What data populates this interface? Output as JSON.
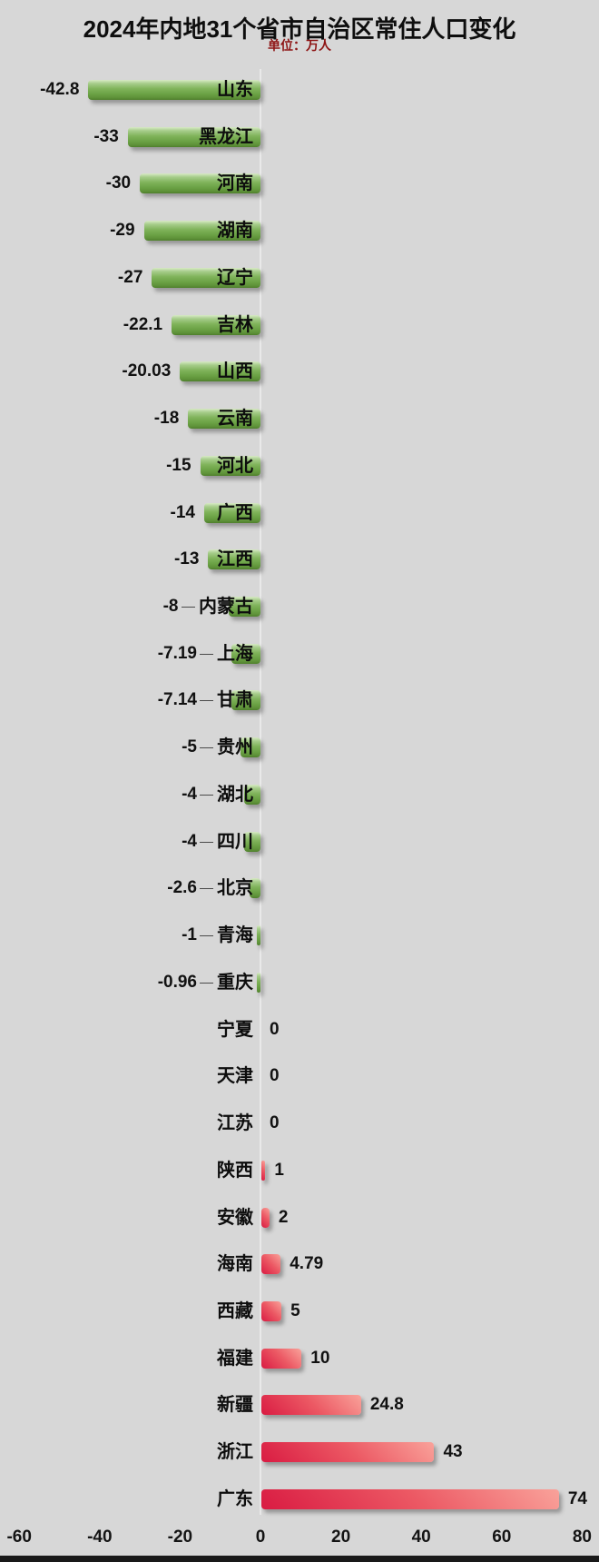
{
  "header": {
    "title": "2024年内地31个省市自治区常住人口变化",
    "subtitle": "单位：万人"
  },
  "colors": {
    "background": "#d7d7d7",
    "subtitle_color": "#8e1515",
    "axis_line": "#e9e9e9",
    "negative_bar_green": "#7fb35a",
    "negative_bar_green_dark": "#4e7f2c",
    "positive_bar_red": "#d91b42",
    "positive_bar_red_light": "#f9a29a",
    "label_color": "#0d0d0d",
    "bottom_strip": "#191919"
  },
  "chart_data": {
    "type": "bar",
    "orientation": "horizontal",
    "title": "2024年内地31个省市自治区常住人口变化",
    "subtitle": "单位：万人",
    "unit": "万人",
    "xlim": [
      -60,
      80
    ],
    "x_ticks": [
      "-60",
      "-40",
      "-20",
      "0",
      "20",
      "40",
      "60",
      "80"
    ],
    "x_tick_values": [
      -60,
      -40,
      -20,
      0,
      20,
      40,
      60,
      80
    ],
    "grid": false,
    "legend": false,
    "categories": [
      "山东",
      "黑龙江",
      "河南",
      "湖南",
      "辽宁",
      "吉林",
      "山西",
      "云南",
      "河北",
      "广西",
      "江西",
      "内蒙古",
      "上海",
      "甘肃",
      "贵州",
      "湖北",
      "四川",
      "北京",
      "青海",
      "重庆",
      "宁夏",
      "天津",
      "江苏",
      "陕西",
      "安徽",
      "海南",
      "西藏",
      "福建",
      "新疆",
      "浙江",
      "广东"
    ],
    "values": [
      -42.8,
      -33,
      -30,
      -29,
      -27,
      -22.1,
      -20.03,
      -18,
      -15,
      -14,
      -13,
      -8,
      -7.19,
      -7.14,
      -5,
      -4,
      -4,
      -2.6,
      -1,
      -0.96,
      0,
      0,
      0,
      1,
      2,
      4.79,
      5,
      10,
      24.8,
      43,
      74
    ],
    "value_labels": [
      "-42.8",
      "-33",
      "-30",
      "-29",
      "-27",
      "-22.1",
      "-20.03",
      "-18",
      "-15",
      "-14",
      "-13",
      "-8",
      "-7.19",
      "-7.14",
      "-5",
      "-4",
      "-4",
      "-2.6",
      "-1",
      "-0.96",
      "0",
      "0",
      "0",
      "1",
      "2",
      "4.79",
      "5",
      "10",
      "24.8",
      "43",
      "74"
    ]
  }
}
